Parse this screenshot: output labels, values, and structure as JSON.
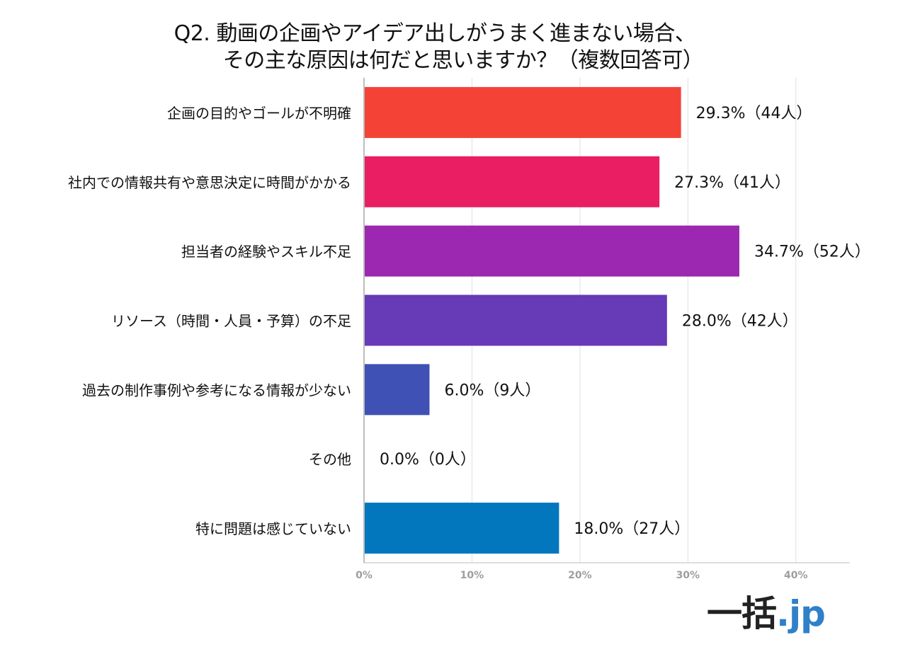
{
  "title_lines": [
    "Q2. 動画の企画やアイデア出しがうまく進まない場合、",
    "その主な原因は何だと思いますか？（複数回答可）"
  ],
  "logo": {
    "main": "一括",
    "dot": ".",
    "tld": "jp"
  },
  "chart_data": {
    "type": "bar",
    "orientation": "horizontal",
    "categories": [
      "企画の目的やゴールが不明確",
      "社内での情報共有や意思決定に時間がかかる",
      "担当者の経験やスキル不足",
      "リソース（時間・人員・予算）の不足",
      "過去の制作事例や参考になる情報が少ない",
      "その他",
      "特に問題は感じていない"
    ],
    "values": [
      29.3,
      27.3,
      34.7,
      28.0,
      6.0,
      0.0,
      18.0
    ],
    "data_labels": [
      "29.3%（44人）",
      "27.3%（41人）",
      "34.7%（52人）",
      "28.0%（42人）",
      "6.0%（9人）",
      "0.0%（0人）",
      "18.0%（27人）"
    ],
    "colors": [
      "#f44336",
      "#e91e63",
      "#9c27b0",
      "#673ab7",
      "#3f51b5",
      "#2196f3",
      "#0277bd"
    ],
    "xlim": [
      0,
      45
    ],
    "x_ticks": [
      0,
      10,
      20,
      30,
      40
    ],
    "x_tick_labels": [
      "0%",
      "10%",
      "20%",
      "30%",
      "40%"
    ],
    "grid": true,
    "gridline_color": "#e0e0e0",
    "axis_color": "#bdbdbd",
    "tick_label_color": "#9e9e9e"
  }
}
